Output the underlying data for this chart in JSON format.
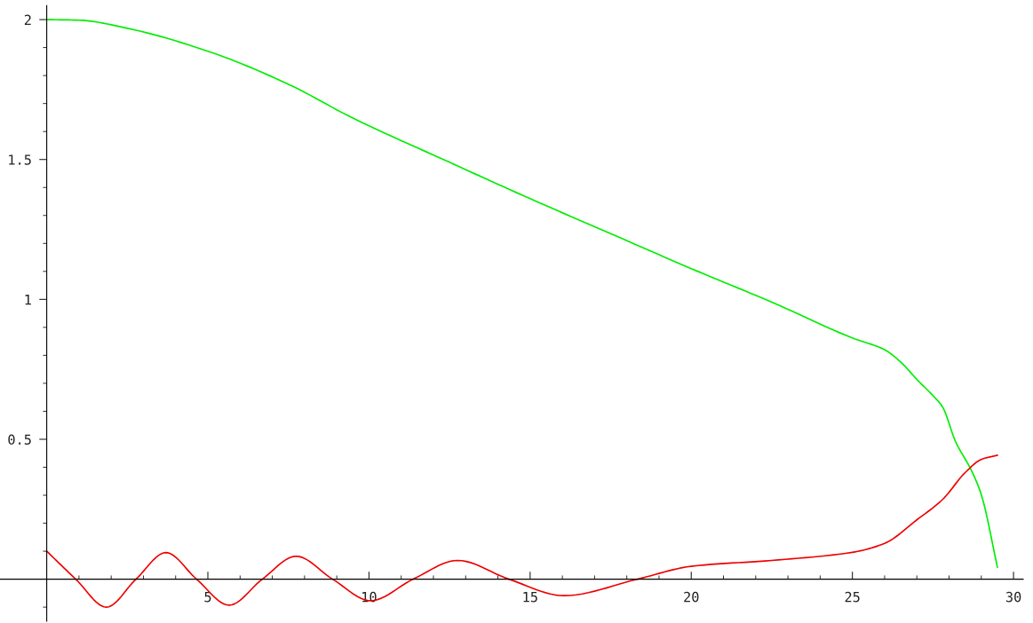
{
  "chart_data": {
    "type": "line",
    "xlim": [
      -1.45,
      30.3
    ],
    "ylim": [
      -0.15,
      2.05
    ],
    "xticks": [
      {
        "value": 1,
        "label": null
      },
      {
        "value": 2,
        "label": null
      },
      {
        "value": 3,
        "label": null
      },
      {
        "value": 4,
        "label": null
      },
      5,
      {
        "value": 6,
        "label": null
      },
      {
        "value": 7,
        "label": null
      },
      {
        "value": 8,
        "label": null
      },
      {
        "value": 9,
        "label": null
      },
      10,
      {
        "value": 11,
        "label": null
      },
      {
        "value": 12,
        "label": null
      },
      {
        "value": 13,
        "label": null
      },
      {
        "value": 14,
        "label": null
      },
      15,
      {
        "value": 16,
        "label": null
      },
      {
        "value": 17,
        "label": null
      },
      {
        "value": 18,
        "label": null
      },
      {
        "value": 19,
        "label": null
      },
      20,
      {
        "value": 21,
        "label": null
      },
      {
        "value": 22,
        "label": null
      },
      {
        "value": 23,
        "label": null
      },
      {
        "value": 24,
        "label": null
      },
      25,
      {
        "value": 26,
        "label": null
      },
      {
        "value": 27,
        "label": null
      },
      {
        "value": 28,
        "label": null
      },
      {
        "value": 29,
        "label": null
      },
      30
    ],
    "yticks": [
      {
        "value": -0.1,
        "label": null
      },
      {
        "value": 0.1,
        "label": null
      },
      {
        "value": 0.2,
        "label": null
      },
      {
        "value": 0.3,
        "label": null
      },
      {
        "value": 0.4,
        "label": null
      },
      0.5,
      {
        "value": 0.6,
        "label": null
      },
      {
        "value": 0.7,
        "label": null
      },
      {
        "value": 0.8,
        "label": null
      },
      {
        "value": 0.9,
        "label": null
      },
      1,
      {
        "value": 1.1,
        "label": null
      },
      {
        "value": 1.2,
        "label": null
      },
      {
        "value": 1.3,
        "label": null
      },
      {
        "value": 1.4,
        "label": null
      },
      1.5,
      {
        "value": 1.6,
        "label": null
      },
      {
        "value": 1.7,
        "label": null
      },
      {
        "value": 1.8,
        "label": null
      },
      {
        "value": 1.9,
        "label": null
      },
      2
    ],
    "line_style": "solid",
    "marker": "none",
    "series": [
      {
        "color": "#00ee00",
        "x": [
          0,
          1,
          2.5,
          5,
          7.5,
          9.5,
          12.5,
          15,
          17.5,
          20,
          22.5,
          25,
          26,
          26.5,
          27,
          27.5,
          27.8,
          28.2,
          28.7,
          29,
          29.5
        ],
        "values": [
          2.0,
          1.998,
          1.969,
          1.887,
          1.769,
          1.648,
          1.49,
          1.36,
          1.235,
          1.11,
          0.99,
          0.862,
          0.82,
          0.776,
          0.714,
          0.656,
          0.615,
          0.492,
          0.387,
          0.302,
          0.043
        ]
      },
      {
        "color": "#ee0000",
        "x": [
          0,
          0.9,
          1.85,
          2.77,
          3.7,
          4.65,
          5.66,
          6.69,
          7.74,
          8.87,
          10.05,
          11.37,
          12.75,
          14.34,
          16.05,
          18.33,
          20,
          22.5,
          25,
          26,
          27,
          27.8,
          28.5,
          29,
          29.5
        ],
        "values": [
          0.1,
          0,
          -0.1,
          0,
          0.095,
          0,
          -0.093,
          0,
          0.082,
          0,
          -0.077,
          0,
          0.067,
          0,
          -0.059,
          0,
          0.046,
          0.067,
          0.096,
          0.128,
          0.212,
          0.285,
          0.381,
          0.428,
          0.443
        ]
      }
    ]
  }
}
